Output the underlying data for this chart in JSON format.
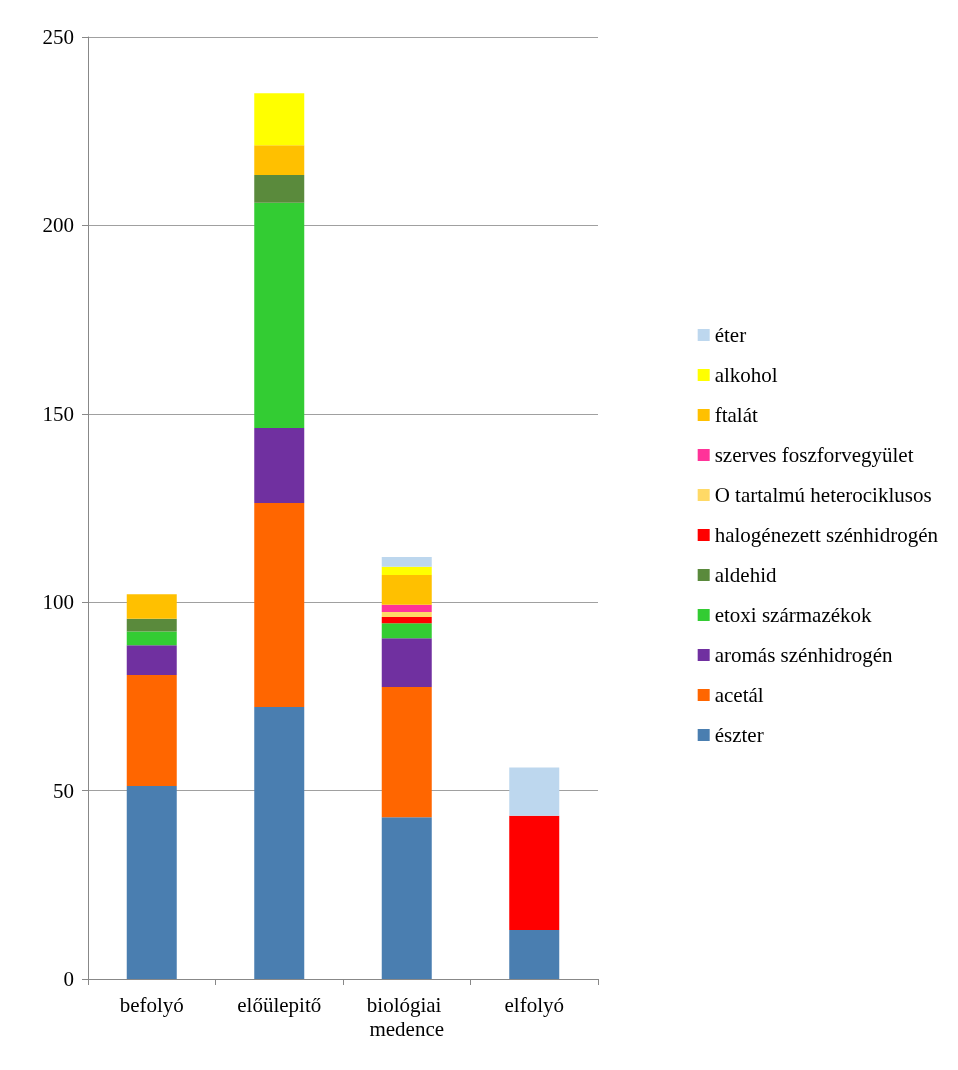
{
  "chart_data": {
    "type": "bar",
    "stacked": true,
    "categories": [
      "befolyó",
      "előülepitő",
      "biológiai medence",
      "elfolyó"
    ],
    "series": [
      {
        "name": "észter",
        "color": "#4a7eb0",
        "values": [
          51.2,
          72.2,
          42.9,
          13.0
        ]
      },
      {
        "name": "acetál",
        "color": "#ff6600",
        "values": [
          29.5,
          54.1,
          34.6,
          null
        ]
      },
      {
        "name": "aromás szénhidrogén",
        "color": "#7030a0",
        "values": [
          7.9,
          19.9,
          12.9,
          null
        ]
      },
      {
        "name": "etoxi származékok",
        "color": "#33cc33",
        "values": [
          3.6,
          59.8,
          4.0,
          null
        ]
      },
      {
        "name": "aldehid",
        "color": "#5a8a3c",
        "values": [
          3.4,
          7.4,
          null,
          null
        ]
      },
      {
        "name": "halogénezett szénhidrogén",
        "color": "#ff0000",
        "values": [
          null,
          null,
          1.7,
          30.3
        ]
      },
      {
        "name": "O tartalmú heterociklusos",
        "color": "#ffd966",
        "values": [
          null,
          null,
          1.3,
          null
        ]
      },
      {
        "name": "szerves foszforvegyület",
        "color": "#ff3399",
        "values": [
          null,
          null,
          1.9,
          null
        ]
      },
      {
        "name": "ftalát",
        "color": "#ffc000",
        "values": [
          6.5,
          7.9,
          7.9,
          null
        ]
      },
      {
        "name": "alkohol",
        "color": "#ffff00",
        "values": [
          null,
          13.8,
          2.2,
          null
        ]
      },
      {
        "name": "éter",
        "color": "#bdd7ee",
        "values": [
          null,
          null,
          2.6,
          12.8
        ]
      }
    ],
    "ylim": [
      0,
      250
    ],
    "yticks": [
      0,
      50,
      100,
      150,
      200,
      250
    ],
    "grid": "y",
    "legend": "right"
  }
}
